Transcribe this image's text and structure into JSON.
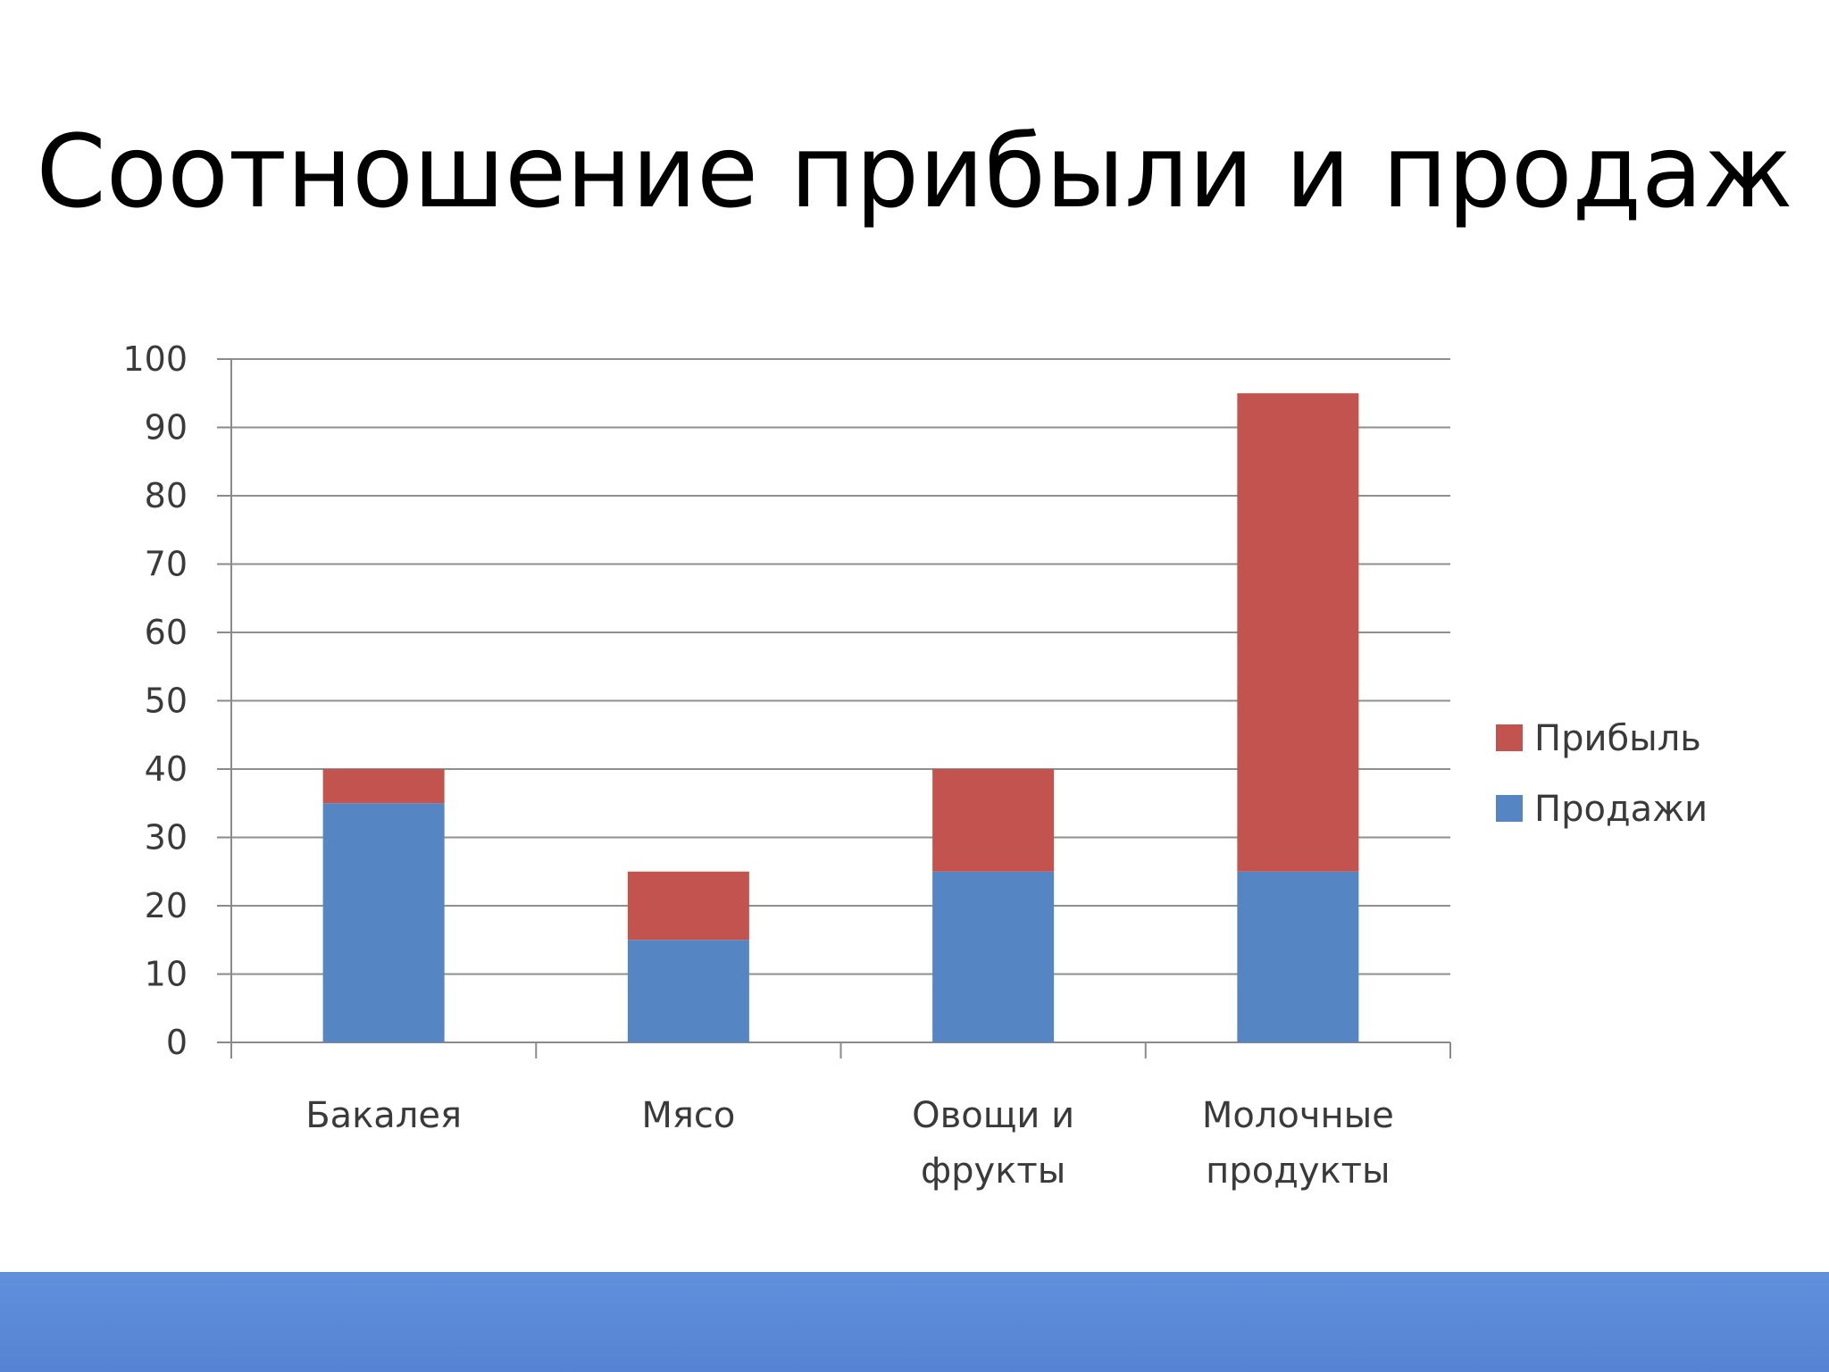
{
  "slide": {
    "title": "Соотношение прибыли и продаж",
    "footer_color": "#5b86d6"
  },
  "chart_data": {
    "type": "bar",
    "stacked": true,
    "categories": [
      [
        "Бакалея"
      ],
      [
        "Мясо"
      ],
      [
        "Овощи и",
        "фрукты"
      ],
      [
        "Молочные",
        "продукты"
      ]
    ],
    "series": [
      {
        "name": "Продажи",
        "values": [
          35,
          15,
          25,
          25
        ],
        "color": "#5585c2"
      },
      {
        "name": "Прибыль",
        "values": [
          5,
          10,
          15,
          70
        ],
        "color": "#c3534f"
      }
    ],
    "ylim": [
      0,
      100
    ],
    "yticks": [
      0,
      10,
      20,
      30,
      40,
      50,
      60,
      70,
      80,
      90,
      100
    ],
    "grid": true,
    "legend_position": "right",
    "legend_order": [
      "Прибыль",
      "Продажи"
    ]
  }
}
